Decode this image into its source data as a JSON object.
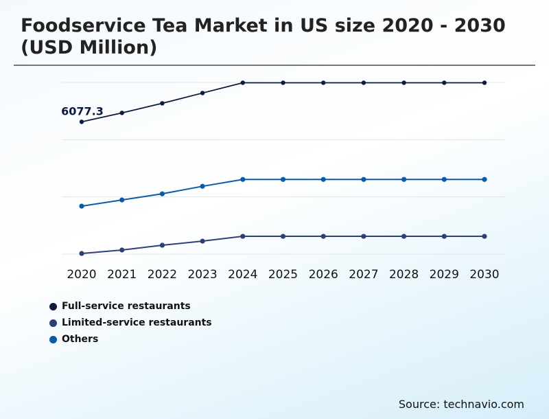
{
  "chart_data": {
    "type": "line",
    "title": "Foodservice Tea Market in US size 2020 - 2030 (USD Million)",
    "x": [
      "2020",
      "2021",
      "2022",
      "2023",
      "2024",
      "2025",
      "2026",
      "2027",
      "2028",
      "2029",
      "2030"
    ],
    "ylim": [
      0,
      7887
    ],
    "grid": true,
    "legend_placement": "bottom-left",
    "series": [
      {
        "name": "Full-service restaurants",
        "color": "#0d1b3e",
        "values": [
          6077.3,
          6487,
          6927,
          7400,
          7872,
          7872,
          7872,
          7872,
          7872,
          7872,
          7872
        ]
      },
      {
        "name": "Limited-service restaurants",
        "color": "#2e3f73",
        "values": [
          31,
          189,
          409,
          598,
          819,
          819,
          819,
          819,
          819,
          819,
          819
        ]
      },
      {
        "name": "Others",
        "color": "#0a5aa8",
        "values": [
          2204,
          2488,
          2771,
          3117,
          3432,
          3432,
          3432,
          3432,
          3432,
          3432,
          3432
        ]
      }
    ],
    "annotations": [
      {
        "series": 0,
        "index": 0,
        "text": "6077.3"
      }
    ]
  },
  "source": "Source: technavio.com"
}
